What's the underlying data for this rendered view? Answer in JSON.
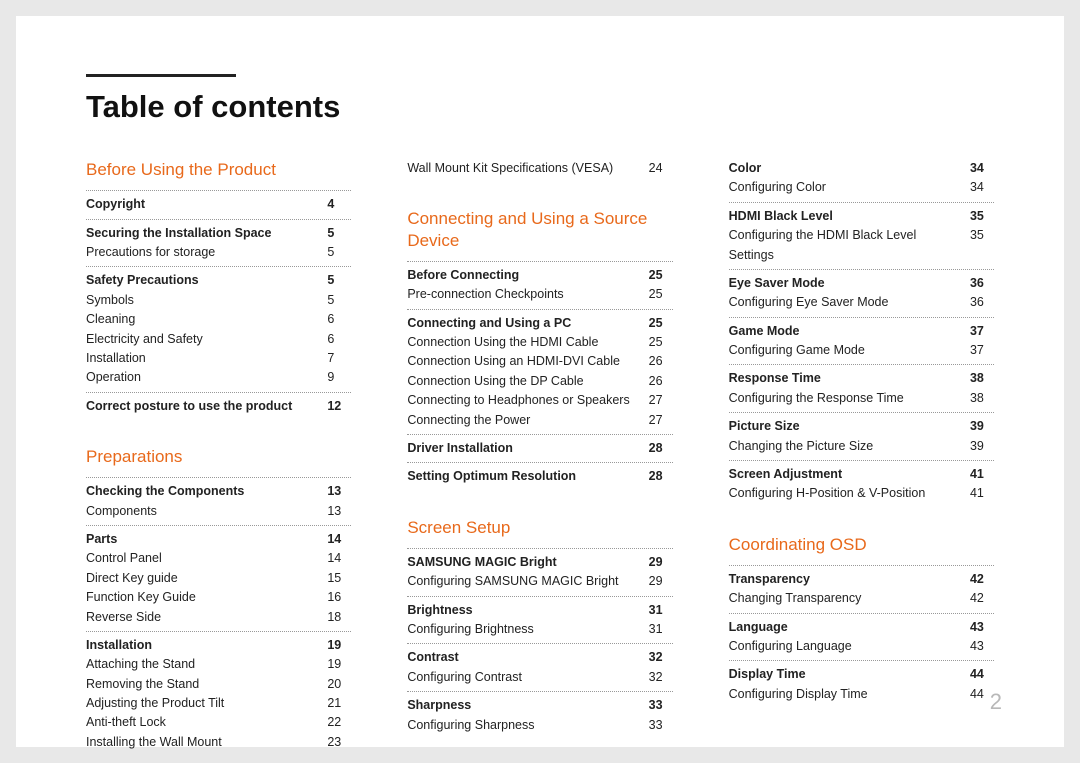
{
  "title": "Table of contents",
  "pageNumber": "2",
  "columns": [
    [
      {
        "chapter": "Before Using the Product",
        "first": true,
        "groups": [
          [
            {
              "label": "Copyright",
              "page": "4",
              "bold": true
            }
          ],
          [
            {
              "label": "Securing the Installation Space",
              "page": "5",
              "bold": true
            },
            {
              "label": "Precautions for storage",
              "page": "5"
            }
          ],
          [
            {
              "label": "Safety Precautions",
              "page": "5",
              "bold": true
            },
            {
              "label": "Symbols",
              "page": "5"
            },
            {
              "label": "Cleaning",
              "page": "6"
            },
            {
              "label": "Electricity and Safety",
              "page": "6"
            },
            {
              "label": "Installation",
              "page": "7"
            },
            {
              "label": "Operation",
              "page": "9"
            }
          ],
          [
            {
              "label": "Correct posture to use the product",
              "page": "12",
              "bold": true
            }
          ]
        ]
      },
      {
        "chapter": "Preparations",
        "groups": [
          [
            {
              "label": "Checking the Components",
              "page": "13",
              "bold": true
            },
            {
              "label": "Components",
              "page": "13"
            }
          ],
          [
            {
              "label": "Parts",
              "page": "14",
              "bold": true
            },
            {
              "label": "Control Panel",
              "page": "14"
            },
            {
              "label": "Direct Key guide",
              "page": "15"
            },
            {
              "label": "Function Key Guide",
              "page": "16"
            },
            {
              "label": "Reverse Side",
              "page": "18"
            }
          ],
          [
            {
              "label": "Installation",
              "page": "19",
              "bold": true
            },
            {
              "label": "Attaching the Stand",
              "page": "19"
            },
            {
              "label": "Removing the Stand",
              "page": "20"
            },
            {
              "label": "Adjusting the Product Tilt",
              "page": "21"
            },
            {
              "label": "Anti-theft Lock",
              "page": "22"
            },
            {
              "label": "Installing the Wall Mount",
              "page": "23"
            }
          ]
        ]
      }
    ],
    [
      {
        "chapter": null,
        "first": true,
        "groups": [
          [
            {
              "label": "Wall Mount Kit Specifications (VESA)",
              "page": "24"
            }
          ]
        ]
      },
      {
        "chapter": "Connecting and Using a Source Device",
        "groups": [
          [
            {
              "label": "Before Connecting",
              "page": "25",
              "bold": true
            },
            {
              "label": "Pre-connection Checkpoints",
              "page": "25"
            }
          ],
          [
            {
              "label": "Connecting and Using a PC",
              "page": "25",
              "bold": true
            },
            {
              "label": "Connection Using the HDMI Cable",
              "page": "25"
            },
            {
              "label": "Connection Using an HDMI-DVI Cable",
              "page": "26"
            },
            {
              "label": "Connection Using the DP Cable",
              "page": "26"
            },
            {
              "label": "Connecting to Headphones or Speakers",
              "page": "27"
            },
            {
              "label": "Connecting the Power",
              "page": "27"
            }
          ],
          [
            {
              "label": "Driver Installation",
              "page": "28",
              "bold": true
            }
          ],
          [
            {
              "label": "Setting Optimum Resolution",
              "page": "28",
              "bold": true
            }
          ]
        ]
      },
      {
        "chapter": "Screen Setup",
        "groups": [
          [
            {
              "label": "SAMSUNG MAGIC Bright",
              "page": "29",
              "bold": true
            },
            {
              "label": "Configuring SAMSUNG MAGIC Bright",
              "page": "29"
            }
          ],
          [
            {
              "label": "Brightness",
              "page": "31",
              "bold": true
            },
            {
              "label": "Configuring Brightness",
              "page": "31"
            }
          ],
          [
            {
              "label": "Contrast",
              "page": "32",
              "bold": true
            },
            {
              "label": "Configuring Contrast",
              "page": "32"
            }
          ],
          [
            {
              "label": "Sharpness",
              "page": "33",
              "bold": true
            },
            {
              "label": "Configuring Sharpness",
              "page": "33"
            }
          ]
        ]
      }
    ],
    [
      {
        "chapter": null,
        "first": true,
        "groups": [
          [
            {
              "label": "Color",
              "page": "34",
              "bold": true
            },
            {
              "label": "Configuring Color",
              "page": "34"
            }
          ],
          [
            {
              "label": "HDMI Black Level",
              "page": "35",
              "bold": true
            },
            {
              "label": "Configuring the HDMI Black Level Settings",
              "page": "35"
            }
          ],
          [
            {
              "label": "Eye Saver Mode",
              "page": "36",
              "bold": true
            },
            {
              "label": "Configuring Eye Saver Mode",
              "page": "36"
            }
          ],
          [
            {
              "label": "Game Mode",
              "page": "37",
              "bold": true
            },
            {
              "label": "Configuring Game Mode",
              "page": "37"
            }
          ],
          [
            {
              "label": "Response Time",
              "page": "38",
              "bold": true
            },
            {
              "label": "Configuring the Response Time",
              "page": "38"
            }
          ],
          [
            {
              "label": "Picture Size",
              "page": "39",
              "bold": true
            },
            {
              "label": "Changing the Picture Size",
              "page": "39"
            }
          ],
          [
            {
              "label": "Screen Adjustment",
              "page": "41",
              "bold": true
            },
            {
              "label": "Configuring H-Position & V-Position",
              "page": "41"
            }
          ]
        ]
      },
      {
        "chapter": "Coordinating OSD",
        "groups": [
          [
            {
              "label": "Transparency",
              "page": "42",
              "bold": true
            },
            {
              "label": "Changing Transparency",
              "page": "42"
            }
          ],
          [
            {
              "label": "Language",
              "page": "43",
              "bold": true
            },
            {
              "label": "Configuring Language",
              "page": "43"
            }
          ],
          [
            {
              "label": "Display Time",
              "page": "44",
              "bold": true
            },
            {
              "label": "Configuring Display Time",
              "page": "44"
            }
          ]
        ]
      }
    ]
  ]
}
